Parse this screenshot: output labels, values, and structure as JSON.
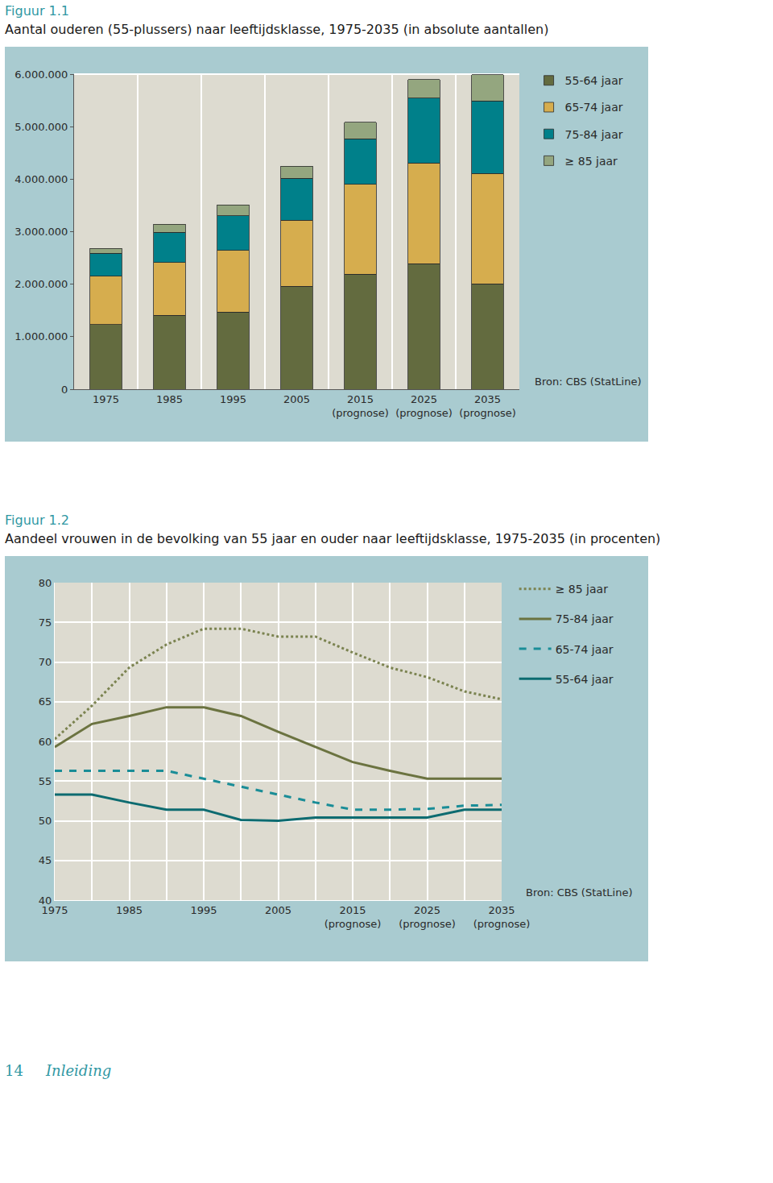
{
  "chart_data": [
    {
      "type": "bar",
      "title": "Figuur 1.1",
      "subtitle": "Aantal ouderen (55-plussers) naar leeftijdsklasse, 1975-2035 (in absolute aantallen)",
      "annotations": [
        "Bron: CBS (StatLine)"
      ],
      "stacked": true,
      "legend": "right",
      "grid": false,
      "categories": [
        "1975",
        "1985",
        "1995",
        "2005",
        "2015 (prognose)",
        "2025 (prognose)",
        "2035 (prognose)"
      ],
      "series": [
        {
          "name": "55-64 jaar",
          "color": "#636b3f",
          "values": [
            1230000,
            1410000,
            1470000,
            1960000,
            2190000,
            2390000,
            2010000
          ]
        },
        {
          "name": "65-74 jaar",
          "color": "#d6ad4e",
          "values": [
            920000,
            1000000,
            1170000,
            1260000,
            1710000,
            1920000,
            2100000
          ]
        },
        {
          "name": "75-84 jaar",
          "color": "#00808a",
          "values": [
            440000,
            580000,
            660000,
            800000,
            870000,
            1230000,
            1380000
          ]
        },
        {
          "name": "≥ 85 jaar",
          "color": "#94a67f",
          "values": [
            90000,
            150000,
            210000,
            230000,
            310000,
            360000,
            500000
          ]
        }
      ],
      "ylim": [
        0,
        6000000
      ],
      "yticks": [
        0,
        {
          "value": 1000000,
          "label": "1.000.000"
        },
        {
          "value": 2000000,
          "label": "2.000.000"
        },
        {
          "value": 3000000,
          "label": "3.000.000"
        },
        {
          "value": 4000000,
          "label": "4.000.000"
        },
        {
          "value": 5000000,
          "label": "5.000.000"
        },
        {
          "value": 6000000,
          "label": "6.000.000"
        }
      ]
    },
    {
      "type": "line",
      "title": "Figuur 1.2",
      "subtitle": "Aandeel vrouwen in de bevolking van 55 jaar en ouder naar leeftijdsklasse, 1975-2035 (in procenten)",
      "annotations": [
        "Bron: CBS (StatLine)"
      ],
      "legend": "right",
      "grid": true,
      "categories": [
        "1975",
        null,
        "1985",
        null,
        "1995",
        null,
        "2005",
        null,
        "2015 (prognose)",
        null,
        "2025 (prognose)",
        null,
        "2035 (prognose)"
      ],
      "series": [
        {
          "name": "≥ 85 jaar",
          "color": "#7b8350",
          "line_style": "dotted",
          "values": [
            60.3,
            64.5,
            69.3,
            72.2,
            74.2,
            74.2,
            73.2,
            73.2,
            71.2,
            69.3,
            68.1,
            66.3,
            65.3
          ]
        },
        {
          "name": "75-84 jaar",
          "color": "#6b7340",
          "line_style": "solid",
          "values": [
            59.3,
            62.2,
            63.2,
            64.3,
            64.3,
            63.2,
            61.2,
            59.3,
            57.4,
            56.3,
            55.3,
            55.3,
            55.3
          ]
        },
        {
          "name": "65-74 jaar",
          "color": "#1a8d97",
          "line_style": "dashed",
          "values": [
            56.3,
            56.3,
            56.3,
            56.3,
            55.3,
            54.3,
            53.3,
            52.3,
            51.4,
            51.4,
            51.5,
            51.9,
            52.0
          ]
        },
        {
          "name": "55-64 jaar",
          "color": "#0d6b70",
          "line_style": "solid",
          "values": [
            53.3,
            53.3,
            52.3,
            51.4,
            51.4,
            50.1,
            50.0,
            50.4,
            50.4,
            50.4,
            50.4,
            51.4,
            51.4
          ]
        }
      ],
      "ylim": [
        40,
        80
      ],
      "yticks": [
        40,
        45,
        50,
        55,
        60,
        65,
        70,
        75,
        80
      ]
    }
  ],
  "page": {
    "footer_page": "14",
    "footer_section": "Inleiding"
  }
}
